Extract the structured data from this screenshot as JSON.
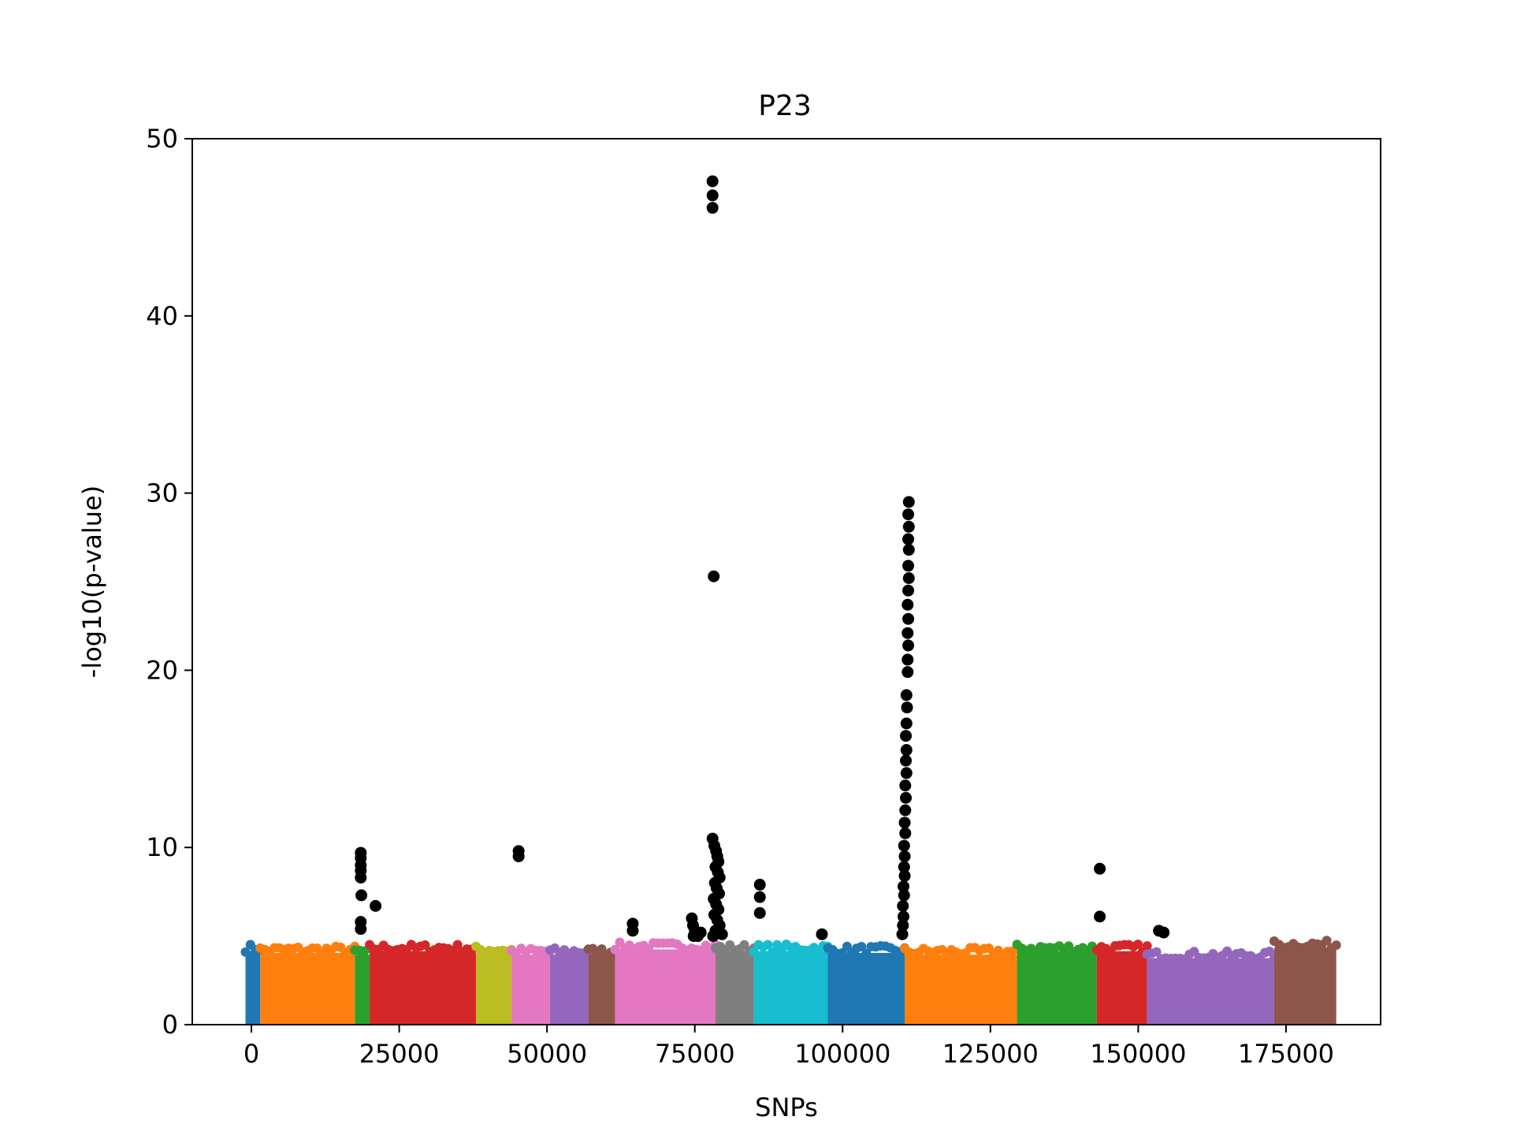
{
  "chart_data": {
    "type": "scatter",
    "title": "P23",
    "xlabel": "SNPs",
    "ylabel": "-log10(p-value)",
    "xlim": [
      -10000,
      191000
    ],
    "ylim": [
      0,
      50
    ],
    "x_ticks": [
      0,
      25000,
      50000,
      75000,
      100000,
      125000,
      150000,
      175000
    ],
    "y_ticks": [
      0,
      10,
      20,
      30,
      40,
      50
    ],
    "grid": false,
    "legend": "none",
    "background_band": {
      "description": "dense points from y=0 up to approx band_top per chromosome segment, colored by chromosome",
      "segments": [
        {
          "chromosome": 1,
          "start": -1000,
          "end": 1500,
          "band_top": 4.5,
          "color": "#1f77b4"
        },
        {
          "chromosome": 2,
          "start": 1500,
          "end": 17500,
          "band_top": 4.4,
          "color": "#ff7f0e"
        },
        {
          "chromosome": 3,
          "start": 17500,
          "end": 20000,
          "band_top": 4.3,
          "color": "#2ca02c"
        },
        {
          "chromosome": 4,
          "start": 20000,
          "end": 38000,
          "band_top": 4.5,
          "color": "#d62728"
        },
        {
          "chromosome": 5,
          "start": 38000,
          "end": 44000,
          "band_top": 4.4,
          "color": "#bcbd22"
        },
        {
          "chromosome": 6,
          "start": 44000,
          "end": 50500,
          "band_top": 4.3,
          "color": "#e377c2"
        },
        {
          "chromosome": 7,
          "start": 50500,
          "end": 57000,
          "band_top": 4.3,
          "color": "#9467bd"
        },
        {
          "chromosome": 8,
          "start": 57000,
          "end": 61500,
          "band_top": 4.3,
          "color": "#8c564b"
        },
        {
          "chromosome": 9,
          "start": 61500,
          "end": 78500,
          "band_top": 4.6,
          "color": "#e377c2"
        },
        {
          "chromosome": 10,
          "start": 78500,
          "end": 85000,
          "band_top": 4.5,
          "color": "#7f7f7f"
        },
        {
          "chromosome": 11,
          "start": 85000,
          "end": 97500,
          "band_top": 4.5,
          "color": "#17becf"
        },
        {
          "chromosome": 12,
          "start": 97500,
          "end": 110500,
          "band_top": 4.4,
          "color": "#1f77b4"
        },
        {
          "chromosome": 13,
          "start": 110500,
          "end": 129500,
          "band_top": 4.3,
          "color": "#ff7f0e"
        },
        {
          "chromosome": 14,
          "start": 129500,
          "end": 143000,
          "band_top": 4.5,
          "color": "#2ca02c"
        },
        {
          "chromosome": 15,
          "start": 143000,
          "end": 151500,
          "band_top": 4.5,
          "color": "#d62728"
        },
        {
          "chromosome": 16,
          "start": 151500,
          "end": 173000,
          "band_top": 4.1,
          "color": "#9467bd"
        },
        {
          "chromosome": 17,
          "start": 173000,
          "end": 183500,
          "band_top": 4.7,
          "color": "#8c564b"
        }
      ]
    },
    "significant_points": {
      "color": "#000000",
      "points": [
        [
          18500,
          9.7
        ],
        [
          18500,
          9.4
        ],
        [
          18500,
          9.0
        ],
        [
          18500,
          8.7
        ],
        [
          18500,
          8.3
        ],
        [
          18600,
          7.3
        ],
        [
          18500,
          5.8
        ],
        [
          18500,
          5.4
        ],
        [
          21000,
          6.7
        ],
        [
          45200,
          9.8
        ],
        [
          45200,
          9.5
        ],
        [
          64500,
          5.7
        ],
        [
          64500,
          5.3
        ],
        [
          74500,
          6.0
        ],
        [
          74700,
          5.6
        ],
        [
          75000,
          5.3
        ],
        [
          75200,
          5.1
        ],
        [
          75500,
          5.0
        ],
        [
          76000,
          5.2
        ],
        [
          74800,
          5.0
        ],
        [
          78000,
          47.6
        ],
        [
          78000,
          46.8
        ],
        [
          78000,
          46.1
        ],
        [
          78200,
          25.3
        ],
        [
          78000,
          10.5
        ],
        [
          78300,
          10.1
        ],
        [
          78600,
          9.8
        ],
        [
          78800,
          9.5
        ],
        [
          79000,
          9.2
        ],
        [
          78500,
          8.9
        ],
        [
          78900,
          8.6
        ],
        [
          79200,
          8.3
        ],
        [
          78400,
          8.0
        ],
        [
          78700,
          7.7
        ],
        [
          79100,
          7.4
        ],
        [
          78200,
          7.1
        ],
        [
          78600,
          6.8
        ],
        [
          79000,
          6.5
        ],
        [
          78300,
          6.2
        ],
        [
          78800,
          5.9
        ],
        [
          79200,
          5.6
        ],
        [
          78500,
          5.3
        ],
        [
          79600,
          5.1
        ],
        [
          78100,
          5.0
        ],
        [
          86000,
          7.9
        ],
        [
          86000,
          7.2
        ],
        [
          86000,
          6.3
        ],
        [
          96500,
          5.1
        ],
        [
          111200,
          29.5
        ],
        [
          111100,
          28.8
        ],
        [
          111200,
          28.1
        ],
        [
          111100,
          27.4
        ],
        [
          111200,
          26.8
        ],
        [
          111100,
          25.9
        ],
        [
          111200,
          25.2
        ],
        [
          111100,
          24.5
        ],
        [
          111000,
          23.7
        ],
        [
          111100,
          22.9
        ],
        [
          111000,
          22.1
        ],
        [
          111100,
          21.4
        ],
        [
          111000,
          20.6
        ],
        [
          111000,
          19.9
        ],
        [
          110800,
          18.6
        ],
        [
          110900,
          17.9
        ],
        [
          110800,
          17.0
        ],
        [
          110700,
          16.3
        ],
        [
          110800,
          15.5
        ],
        [
          110700,
          14.9
        ],
        [
          110800,
          14.2
        ],
        [
          110600,
          13.5
        ],
        [
          110700,
          12.8
        ],
        [
          110600,
          12.1
        ],
        [
          110500,
          11.4
        ],
        [
          110600,
          10.8
        ],
        [
          110400,
          10.1
        ],
        [
          110500,
          9.5
        ],
        [
          110400,
          8.9
        ],
        [
          110500,
          8.4
        ],
        [
          110300,
          7.8
        ],
        [
          110400,
          7.3
        ],
        [
          110200,
          6.7
        ],
        [
          110300,
          6.1
        ],
        [
          110200,
          5.6
        ],
        [
          110100,
          5.1
        ],
        [
          143500,
          8.8
        ],
        [
          143500,
          6.1
        ],
        [
          153500,
          5.3
        ],
        [
          154300,
          5.2
        ]
      ]
    }
  }
}
